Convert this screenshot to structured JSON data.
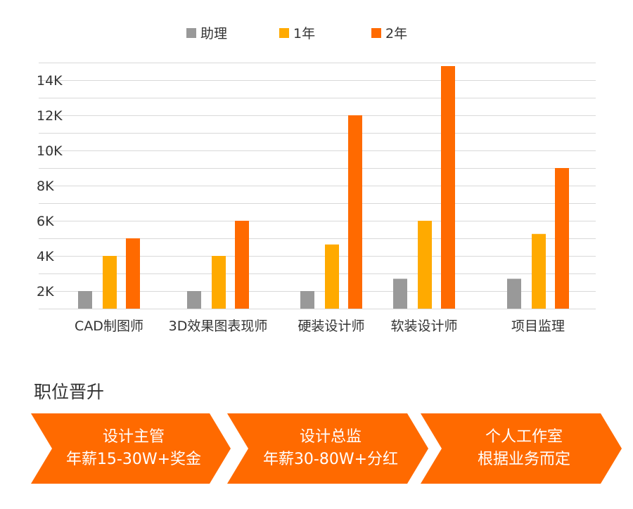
{
  "chart_data": {
    "type": "bar",
    "categories": [
      "CAD制图师",
      "3D效果图表现师",
      "硬装设计师",
      "软装设计师",
      "项目监理"
    ],
    "series": [
      {
        "name": "助理",
        "color": "#999999",
        "values": [
          2000,
          2000,
          2000,
          2700,
          2700
        ]
      },
      {
        "name": "1年",
        "color": "#FFAA00",
        "values": [
          4000,
          4000,
          4650,
          6000,
          5250
        ]
      },
      {
        "name": "2年",
        "color": "#FF6A00",
        "values": [
          5000,
          6000,
          12000,
          14800,
          9000
        ]
      }
    ],
    "y_ticks": [
      "2K",
      "4K",
      "6K",
      "8K",
      "10K",
      "12K",
      "14K"
    ],
    "ylim": [
      1000,
      15000
    ],
    "grid": true,
    "legend_position": "top"
  },
  "career": {
    "title": "职位晋升",
    "color": "#FF6A00",
    "steps": [
      {
        "line1": "设计主管",
        "line2": "年薪15-30W+奖金"
      },
      {
        "line1": "设计总监",
        "line2": "年薪30-80W+分红"
      },
      {
        "line1": "个人工作室",
        "line2": "根据业务而定"
      }
    ]
  }
}
